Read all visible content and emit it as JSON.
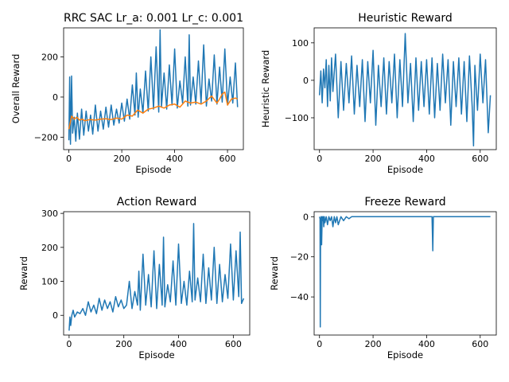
{
  "chart_data": [
    {
      "type": "line",
      "title": "RRC SAC Lr_a: 0.001 Lr_c: 0.001",
      "xlabel": "Episode",
      "ylabel": "Overall Reward",
      "xlim": [
        -20,
        660
      ],
      "ylim": [
        -262,
        345
      ],
      "xticks": [
        0,
        200,
        400,
        600
      ],
      "yticks": [
        -200,
        0,
        200
      ],
      "series": [
        {
          "color": "#1f77b4",
          "x": [
            0,
            3,
            6,
            10,
            14,
            20,
            26,
            32,
            40,
            48,
            56,
            65,
            74,
            82,
            90,
            100,
            110,
            120,
            130,
            140,
            150,
            160,
            170,
            180,
            190,
            200,
            210,
            220,
            230,
            240,
            250,
            255,
            262,
            270,
            280,
            290,
            300,
            310,
            320,
            330,
            340,
            345,
            350,
            360,
            370,
            380,
            390,
            400,
            410,
            420,
            430,
            440,
            450,
            455,
            460,
            470,
            480,
            490,
            500,
            510,
            520,
            530,
            540,
            550,
            560,
            570,
            580,
            590,
            600,
            610,
            620,
            630,
            638
          ],
          "y": [
            -215,
            100,
            -235,
            105,
            -180,
            -100,
            -220,
            -80,
            -210,
            -60,
            -190,
            -70,
            -170,
            -90,
            -185,
            -40,
            -170,
            -70,
            -160,
            -50,
            -150,
            -40,
            -140,
            -60,
            -130,
            -30,
            -120,
            -10,
            -110,
            60,
            -90,
            120,
            -100,
            40,
            -80,
            130,
            -70,
            200,
            -60,
            250,
            -75,
            335,
            -50,
            120,
            -60,
            160,
            -40,
            240,
            -55,
            80,
            -30,
            200,
            -45,
            310,
            -40,
            100,
            -35,
            180,
            -30,
            260,
            -45,
            90,
            -20,
            210,
            -35,
            150,
            -25,
            240,
            -40,
            100,
            -30,
            170,
            -50
          ]
        },
        {
          "color": "#ff7f0e",
          "x": [
            0,
            10,
            20,
            30,
            40,
            50,
            60,
            80,
            100,
            120,
            140,
            160,
            180,
            200,
            220,
            240,
            260,
            280,
            300,
            320,
            340,
            360,
            380,
            400,
            420,
            440,
            460,
            480,
            500,
            520,
            540,
            560,
            570,
            580,
            590,
            600,
            615,
            630,
            638
          ],
          "y": [
            -160,
            -95,
            -110,
            -100,
            -115,
            -110,
            -118,
            -112,
            -115,
            -110,
            -108,
            -112,
            -105,
            -110,
            -90,
            -95,
            -65,
            -80,
            -60,
            -55,
            -45,
            -55,
            -40,
            -35,
            -50,
            -20,
            -30,
            -25,
            -35,
            -20,
            5,
            -30,
            -10,
            15,
            25,
            -40,
            -10,
            -5,
            -10
          ]
        }
      ]
    },
    {
      "type": "line",
      "title": "Heuristic Reward",
      "xlabel": "Episode",
      "ylabel": "Heuristic Reward",
      "xlim": [
        -20,
        660
      ],
      "ylim": [
        -185,
        140
      ],
      "xticks": [
        0,
        200,
        400,
        600
      ],
      "yticks": [
        -100,
        0,
        100
      ],
      "series": [
        {
          "color": "#1f77b4",
          "x": [
            0,
            5,
            10,
            15,
            20,
            25,
            30,
            35,
            40,
            45,
            50,
            60,
            70,
            80,
            90,
            100,
            110,
            120,
            130,
            140,
            150,
            160,
            170,
            180,
            190,
            200,
            210,
            220,
            230,
            240,
            250,
            260,
            270,
            280,
            290,
            300,
            310,
            320,
            330,
            340,
            350,
            360,
            370,
            380,
            390,
            400,
            410,
            420,
            430,
            440,
            450,
            460,
            470,
            480,
            490,
            500,
            510,
            520,
            530,
            540,
            550,
            560,
            570,
            575,
            580,
            590,
            600,
            610,
            620,
            630,
            638
          ],
          "y": [
            -40,
            25,
            -60,
            30,
            -20,
            55,
            -70,
            40,
            -55,
            60,
            -30,
            70,
            -100,
            50,
            -80,
            45,
            -60,
            65,
            -90,
            40,
            -70,
            55,
            -110,
            50,
            -60,
            80,
            -120,
            40,
            -70,
            60,
            -90,
            50,
            -60,
            70,
            -100,
            55,
            -70,
            125,
            -60,
            45,
            -110,
            60,
            -80,
            50,
            -70,
            55,
            -90,
            60,
            -100,
            45,
            -80,
            70,
            -60,
            55,
            -120,
            50,
            -70,
            60,
            -90,
            50,
            -110,
            65,
            -70,
            -175,
            40,
            -80,
            70,
            -60,
            55,
            -140,
            -40
          ]
        }
      ]
    },
    {
      "type": "line",
      "title": "Action Reward",
      "xlabel": "Episode",
      "ylabel": "Reward",
      "xlim": [
        -20,
        660
      ],
      "ylim": [
        -58,
        305
      ],
      "xticks": [
        0,
        200,
        400,
        600
      ],
      "yticks": [
        0,
        100,
        200,
        300
      ],
      "series": [
        {
          "color": "#1f77b4",
          "x": [
            0,
            3,
            6,
            10,
            15,
            20,
            30,
            40,
            50,
            60,
            70,
            80,
            90,
            100,
            110,
            120,
            130,
            140,
            150,
            160,
            170,
            180,
            190,
            200,
            210,
            220,
            230,
            240,
            250,
            255,
            260,
            270,
            280,
            290,
            300,
            310,
            320,
            330,
            340,
            345,
            350,
            360,
            370,
            380,
            390,
            400,
            410,
            420,
            430,
            440,
            450,
            455,
            460,
            470,
            480,
            490,
            500,
            510,
            520,
            530,
            540,
            550,
            560,
            570,
            580,
            590,
            600,
            610,
            620,
            625,
            630,
            638
          ],
          "y": [
            -45,
            -5,
            -30,
            0,
            15,
            -5,
            10,
            5,
            20,
            0,
            40,
            10,
            30,
            5,
            50,
            15,
            45,
            20,
            40,
            10,
            55,
            25,
            45,
            20,
            30,
            100,
            20,
            70,
            30,
            130,
            15,
            180,
            30,
            120,
            25,
            190,
            20,
            150,
            30,
            230,
            25,
            90,
            40,
            160,
            30,
            210,
            35,
            100,
            30,
            130,
            40,
            270,
            45,
            110,
            40,
            180,
            35,
            140,
            45,
            200,
            35,
            150,
            40,
            120,
            50,
            210,
            45,
            190,
            55,
            245,
            35,
            50
          ]
        }
      ]
    },
    {
      "type": "line",
      "title": "Freeze Reward",
      "xlabel": "Episode",
      "ylabel": "Reward",
      "xlim": [
        -20,
        660
      ],
      "ylim": [
        -59,
        2.5
      ],
      "xticks": [
        0,
        200,
        400,
        600
      ],
      "yticks": [
        -40,
        -20,
        0
      ],
      "series": [
        {
          "color": "#1f77b4",
          "x": [
            0,
            2,
            3,
            4,
            5,
            6,
            8,
            10,
            12,
            14,
            16,
            18,
            20,
            25,
            30,
            35,
            40,
            45,
            50,
            55,
            60,
            65,
            70,
            80,
            90,
            100,
            110,
            120,
            130,
            200,
            300,
            400,
            420,
            423,
            425,
            430,
            500,
            600,
            638
          ],
          "y": [
            0,
            -1,
            -55,
            -1,
            -10,
            0,
            -14,
            0,
            -2,
            0,
            -5,
            0,
            -3,
            0,
            -4,
            0,
            -2,
            0,
            -5,
            0,
            -3,
            0,
            -4,
            0,
            -2,
            0,
            -1,
            0,
            0,
            0,
            0,
            0,
            0,
            -17,
            0,
            0,
            0,
            0,
            0
          ]
        }
      ]
    }
  ]
}
